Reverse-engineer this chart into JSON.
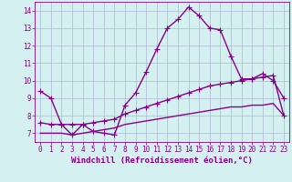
{
  "xlabel": "Windchill (Refroidissement éolien,°C)",
  "background_color": "#d4f0f0",
  "grid_color": "#b0b8d0",
  "line_color": "#880088",
  "x_ticks": [
    0,
    1,
    2,
    3,
    4,
    5,
    6,
    7,
    8,
    9,
    10,
    11,
    12,
    13,
    14,
    15,
    16,
    17,
    18,
    19,
    20,
    21,
    22,
    23
  ],
  "y_ticks": [
    7,
    8,
    9,
    10,
    11,
    12,
    13,
    14
  ],
  "ylim": [
    6.5,
    14.5
  ],
  "xlim": [
    -0.5,
    23.5
  ],
  "series1_x": [
    0,
    1,
    2,
    3,
    4,
    5,
    6,
    7,
    8,
    9,
    10,
    11,
    12,
    13,
    14,
    15,
    16,
    17,
    18,
    19,
    20,
    21,
    22,
    23
  ],
  "series1_y": [
    9.4,
    9.0,
    7.5,
    6.9,
    7.5,
    7.1,
    7.0,
    6.9,
    8.6,
    9.3,
    10.5,
    11.8,
    13.0,
    13.5,
    14.2,
    13.7,
    13.0,
    12.9,
    11.4,
    10.1,
    10.1,
    10.4,
    10.0,
    9.0
  ],
  "series2_x": [
    0,
    1,
    2,
    3,
    4,
    5,
    6,
    7,
    8,
    9,
    10,
    11,
    12,
    13,
    14,
    15,
    16,
    17,
    18,
    19,
    20,
    21,
    22,
    23
  ],
  "series2_y": [
    7.6,
    7.5,
    7.5,
    7.5,
    7.5,
    7.6,
    7.7,
    7.8,
    8.1,
    8.3,
    8.5,
    8.7,
    8.9,
    9.1,
    9.3,
    9.5,
    9.7,
    9.8,
    9.9,
    10.0,
    10.1,
    10.2,
    10.3,
    8.0
  ],
  "series3_x": [
    0,
    1,
    2,
    3,
    4,
    5,
    6,
    7,
    8,
    9,
    10,
    11,
    12,
    13,
    14,
    15,
    16,
    17,
    18,
    19,
    20,
    21,
    22,
    23
  ],
  "series3_y": [
    7.0,
    7.0,
    7.0,
    6.9,
    7.0,
    7.1,
    7.2,
    7.3,
    7.5,
    7.6,
    7.7,
    7.8,
    7.9,
    8.0,
    8.1,
    8.2,
    8.3,
    8.4,
    8.5,
    8.5,
    8.6,
    8.6,
    8.7,
    8.0
  ],
  "marker": "+",
  "markersize": 4,
  "linewidth": 1.0,
  "tick_fontsize": 5.5,
  "xlabel_fontsize": 6.5
}
